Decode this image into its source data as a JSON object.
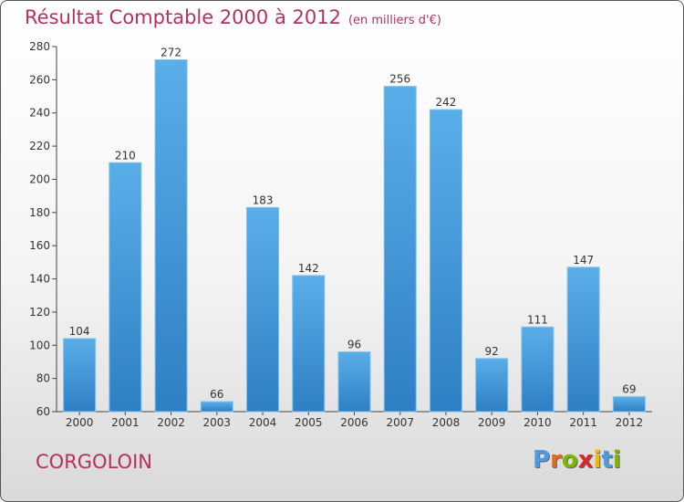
{
  "header": {
    "title": "Résultat Comptable 2000 à 2012",
    "subtitle": "(en milliers d'€)"
  },
  "footer": {
    "commune": "CORGOLOIN",
    "logo_letters": [
      "P",
      "r",
      "o",
      "x",
      "i",
      "t",
      "i"
    ]
  },
  "colors": {
    "title": "#b5305f",
    "bar_top": "#5aaee8",
    "bar_bottom": "#2f7fc4",
    "logo": [
      "#4a9be0",
      "#e06a1a",
      "#7ab800",
      "#e0262b",
      "#f5b800",
      "#4a9be0",
      "#7ab800"
    ]
  },
  "chart_data": {
    "type": "bar",
    "title": "Résultat Comptable 2000 à 2012",
    "subtitle": "(en milliers d'€)",
    "categories": [
      "2000",
      "2001",
      "2002",
      "2003",
      "2004",
      "2005",
      "2006",
      "2007",
      "2008",
      "2009",
      "2010",
      "2011",
      "2012"
    ],
    "values": [
      104,
      210,
      272,
      66,
      183,
      142,
      96,
      256,
      242,
      92,
      111,
      147,
      69
    ],
    "ylim": [
      60,
      280
    ],
    "yticks": [
      60,
      80,
      100,
      120,
      140,
      160,
      180,
      200,
      220,
      240,
      260,
      280
    ],
    "xlabel": "",
    "ylabel": "",
    "grid": false
  }
}
